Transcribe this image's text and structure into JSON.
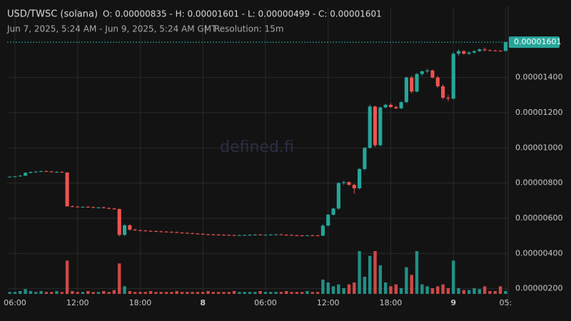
{
  "chart_data": {
    "type": "candlestick",
    "header": {
      "symbol": "USD/TWSC (solana)",
      "ohlc": "O: 0.00000835 - H: 0.00001601 - L: 0.00000499 - C: 0.00001601",
      "range": "Jun 7, 2025, 5:24 AM - Jun 9, 2025, 5:24 AM GMT",
      "separator": "|",
      "resolution": "Resolution: 15m"
    },
    "watermark": "defined.fi",
    "categories": [
      null,
      "06:00",
      null,
      null,
      null,
      null,
      null,
      null,
      null,
      null,
      null,
      null,
      null,
      "12:00",
      null,
      null,
      null,
      null,
      null,
      null,
      null,
      null,
      null,
      null,
      null,
      "18:00",
      null,
      null,
      null,
      null,
      null,
      null,
      null,
      null,
      null,
      null,
      null,
      "8",
      null,
      null,
      null,
      null,
      null,
      null,
      null,
      null,
      null,
      null,
      null,
      "06:00",
      null,
      null,
      null,
      null,
      null,
      null,
      null,
      null,
      null,
      null,
      null,
      "12:00",
      null,
      null,
      null,
      null,
      null,
      null,
      null,
      null,
      null,
      null,
      null,
      "18:00",
      null,
      null,
      null,
      null,
      null,
      null,
      null,
      null,
      null,
      null,
      null,
      "9",
      null,
      null,
      null,
      null,
      null,
      null,
      null,
      null,
      null,
      "05:"
    ],
    "open": [
      8.35e-06,
      8.36e-06,
      8.38e-06,
      8.42e-06,
      8.58e-06,
      8.63e-06,
      8.65e-06,
      8.68e-06,
      8.66e-06,
      8.62e-06,
      8.64e-06,
      8.6e-06,
      6.68e-06,
      6.66e-06,
      6.64e-06,
      6.65e-06,
      6.63e-06,
      6.6e-06,
      6.62e-06,
      6.58e-06,
      6.55e-06,
      6.52e-06,
      5.05e-06,
      5.6e-06,
      5.35e-06,
      5.32e-06,
      5.3e-06,
      5.28e-06,
      5.27e-06,
      5.25e-06,
      5.24e-06,
      5.22e-06,
      5.21e-06,
      5.18e-06,
      5.17e-06,
      5.15e-06,
      5.13e-06,
      5.11e-06,
      5.09e-06,
      5.08e-06,
      5.07e-06,
      5.06e-06,
      5.05e-06,
      5.04e-06,
      5.03e-06,
      5.04e-06,
      5.05e-06,
      5.06e-06,
      5.07e-06,
      5.05e-06,
      5.06e-06,
      5.07e-06,
      5.08e-06,
      5.06e-06,
      5.05e-06,
      5.03e-06,
      5.02e-06,
      5.01e-06,
      5.03e-06,
      5.02e-06,
      5.01e-06,
      5.58e-06,
      6.2e-06,
      6.55e-06,
      8e-06,
      8.05e-06,
      7.9e-06,
      7.7e-06,
      8.8e-06,
      1e-05,
      1.235e-05,
      1.015e-05,
      1.23e-05,
      1.245e-05,
      1.232e-05,
      1.225e-05,
      1.26e-05,
      1.4e-05,
      1.32e-05,
      1.42e-05,
      1.435e-05,
      1.44e-05,
      1.4e-05,
      1.35e-05,
      1.285e-05,
      1.28e-05,
      1.535e-05,
      1.55e-05,
      1.535e-05,
      1.542e-05,
      1.55e-05,
      1.56e-05,
      1.555e-05,
      1.553e-05,
      1.552e-05,
      1.551e-05
    ],
    "high": [
      8.38e-06,
      8.4e-06,
      8.45e-06,
      8.62e-06,
      8.66e-06,
      8.68e-06,
      8.7e-06,
      8.72e-06,
      8.68e-06,
      8.66e-06,
      8.66e-06,
      8.62e-06,
      6.72e-06,
      6.7e-06,
      6.68e-06,
      6.7e-06,
      6.67e-06,
      6.64e-06,
      6.66e-06,
      6.62e-06,
      6.6e-06,
      6.55e-06,
      5.65e-06,
      5.66e-06,
      5.4e-06,
      5.35e-06,
      5.34e-06,
      5.32e-06,
      5.3e-06,
      5.29e-06,
      5.27e-06,
      5.26e-06,
      5.24e-06,
      5.22e-06,
      5.2e-06,
      5.18e-06,
      5.16e-06,
      5.14e-06,
      5.12e-06,
      5.11e-06,
      5.1e-06,
      5.09e-06,
      5.08e-06,
      5.07e-06,
      5.06e-06,
      5.07e-06,
      5.09e-06,
      5.1e-06,
      5.1e-06,
      5.08e-06,
      5.09e-06,
      5.11e-06,
      5.12e-06,
      5.09e-06,
      5.08e-06,
      5.06e-06,
      5.05e-06,
      5.04e-06,
      5.06e-06,
      5.05e-06,
      5.65e-06,
      6.25e-06,
      6.6e-06,
      8.05e-06,
      8.12e-06,
      8.1e-06,
      7.95e-06,
      8.85e-06,
      1.005e-05,
      1.245e-05,
      1.24e-05,
      1.235e-05,
      1.25e-05,
      1.255e-05,
      1.24e-05,
      1.265e-05,
      1.405e-05,
      1.41e-05,
      1.425e-05,
      1.44e-05,
      1.45e-05,
      1.445e-05,
      1.41e-05,
      1.36e-05,
      1.3e-05,
      1.545e-05,
      1.56e-05,
      1.555e-05,
      1.548e-05,
      1.555e-05,
      1.565e-05,
      1.57e-05,
      1.56e-05,
      1.558e-05,
      1.556e-05,
      1.601e-05
    ],
    "low": [
      8.32e-06,
      8.34e-06,
      8.36e-06,
      8.4e-06,
      8.55e-06,
      8.6e-06,
      8.62e-06,
      8.64e-06,
      8.6e-06,
      8.58e-06,
      8.58e-06,
      6.65e-06,
      6.63e-06,
      6.62e-06,
      6.6e-06,
      6.61e-06,
      6.58e-06,
      6.55e-06,
      6.56e-06,
      6.52e-06,
      6.48e-06,
      4.98e-06,
      5e-06,
      5.3e-06,
      5.28e-06,
      5.26e-06,
      5.25e-06,
      5.24e-06,
      5.22e-06,
      5.2e-06,
      5.19e-06,
      5.18e-06,
      5.16e-06,
      5.14e-06,
      5.12e-06,
      5.1e-06,
      5.08e-06,
      5.06e-06,
      5.05e-06,
      5.04e-06,
      5.03e-06,
      5.02e-06,
      5.01e-06,
      5e-06,
      5e-06,
      5.01e-06,
      5.02e-06,
      5.03e-06,
      5.03e-06,
      5.02e-06,
      5.03e-06,
      5.04e-06,
      5.04e-06,
      5.02e-06,
      5.01e-06,
      5e-06,
      4.99e-06,
      4.99e-06,
      5e-06,
      4.99e-06,
      4.99e-06,
      5.55e-06,
      6.15e-06,
      6.5e-06,
      7.9e-06,
      7.85e-06,
      7.4e-06,
      7.65e-06,
      8.7e-06,
      9.95e-06,
      1.005e-05,
      1.01e-05,
      1.225e-05,
      1.228e-05,
      1.22e-05,
      1.22e-05,
      1.255e-05,
      1.31e-05,
      1.315e-05,
      1.41e-05,
      1.425e-05,
      1.395e-05,
      1.34e-05,
      1.275e-05,
      1.265e-05,
      1.275e-05,
      1.525e-05,
      1.53e-05,
      1.528e-05,
      1.535e-05,
      1.545e-05,
      1.548e-05,
      1.55e-05,
      1.549e-05,
      1.548e-05,
      1.55e-05
    ],
    "close": [
      8.36e-06,
      8.38e-06,
      8.42e-06,
      8.58e-06,
      8.63e-06,
      8.65e-06,
      8.68e-06,
      8.66e-06,
      8.62e-06,
      8.64e-06,
      8.6e-06,
      6.68e-06,
      6.66e-06,
      6.64e-06,
      6.65e-06,
      6.63e-06,
      6.6e-06,
      6.62e-06,
      6.58e-06,
      6.55e-06,
      6.52e-06,
      5.05e-06,
      5.6e-06,
      5.35e-06,
      5.32e-06,
      5.3e-06,
      5.28e-06,
      5.27e-06,
      5.25e-06,
      5.24e-06,
      5.22e-06,
      5.21e-06,
      5.18e-06,
      5.17e-06,
      5.15e-06,
      5.13e-06,
      5.11e-06,
      5.09e-06,
      5.08e-06,
      5.07e-06,
      5.06e-06,
      5.05e-06,
      5.04e-06,
      5.03e-06,
      5.04e-06,
      5.05e-06,
      5.06e-06,
      5.07e-06,
      5.05e-06,
      5.06e-06,
      5.07e-06,
      5.08e-06,
      5.06e-06,
      5.05e-06,
      5.03e-06,
      5.02e-06,
      5.01e-06,
      5.03e-06,
      5.02e-06,
      5.01e-06,
      5.58e-06,
      6.2e-06,
      6.55e-06,
      8e-06,
      8.05e-06,
      7.9e-06,
      7.7e-06,
      8.8e-06,
      1e-05,
      1.235e-05,
      1.015e-05,
      1.23e-05,
      1.245e-05,
      1.232e-05,
      1.225e-05,
      1.26e-05,
      1.4e-05,
      1.32e-05,
      1.42e-05,
      1.435e-05,
      1.44e-05,
      1.4e-05,
      1.35e-05,
      1.285e-05,
      1.28e-05,
      1.535e-05,
      1.55e-05,
      1.535e-05,
      1.542e-05,
      1.55e-05,
      1.56e-05,
      1.555e-05,
      1.553e-05,
      1.552e-05,
      1.551e-05,
      1.601e-05
    ],
    "volume": [
      2,
      2,
      3,
      5,
      3,
      2,
      3,
      2,
      2,
      3,
      2,
      35,
      3,
      2,
      2,
      3,
      2,
      2,
      3,
      2,
      4,
      32,
      8,
      3,
      2,
      2,
      2,
      3,
      2,
      2,
      2,
      2,
      3,
      2,
      2,
      2,
      2,
      2,
      3,
      2,
      2,
      2,
      2,
      3,
      2,
      2,
      2,
      2,
      3,
      2,
      2,
      2,
      2,
      3,
      2,
      2,
      2,
      3,
      2,
      2,
      15,
      12,
      8,
      10,
      6,
      10,
      12,
      45,
      18,
      40,
      45,
      30,
      12,
      8,
      10,
      6,
      28,
      20,
      45,
      10,
      8,
      6,
      8,
      10,
      6,
      35,
      6,
      4,
      4,
      6,
      5,
      8,
      3,
      3,
      8,
      3
    ],
    "up_color": "#26a69a",
    "down_color": "#ef5350",
    "ylim": [
      1.7e-06,
      1.8e-05
    ],
    "yticks": [
      {
        "value": 2e-06,
        "label": "0.00000200"
      },
      {
        "value": 4e-06,
        "label": "0.00000400"
      },
      {
        "value": 6e-06,
        "label": "0.00000600"
      },
      {
        "value": 8e-06,
        "label": "0.00000800"
      },
      {
        "value": 1e-05,
        "label": "0.00001000"
      },
      {
        "value": 1.2e-05,
        "label": "0.00001200"
      },
      {
        "value": 1.4e-05,
        "label": "0.00001400"
      }
    ],
    "last_price": {
      "value": 1.601e-05,
      "label": "0.00001601"
    },
    "grid": true
  }
}
